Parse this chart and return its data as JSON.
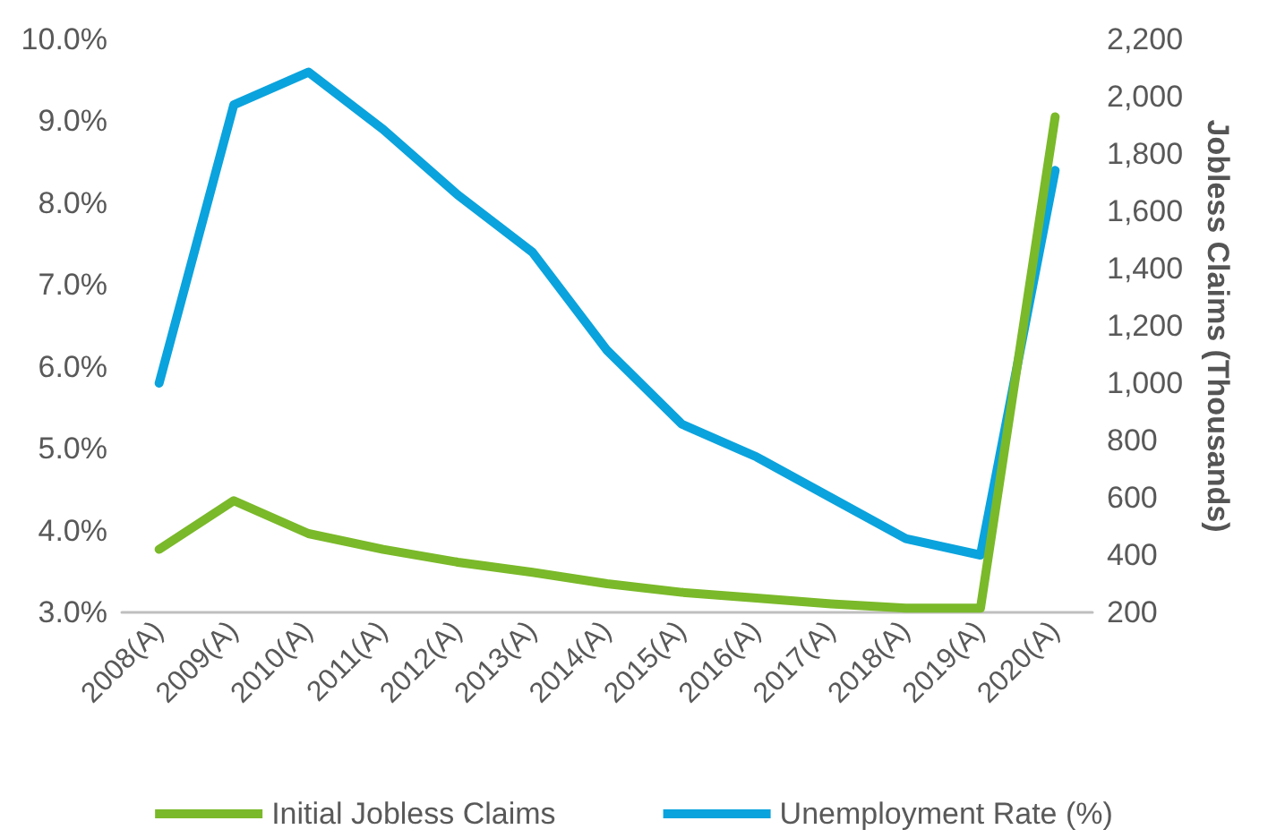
{
  "chart_data": {
    "type": "line",
    "categories": [
      "2008(A)",
      "2009(A)",
      "2010(A)",
      "2011(A)",
      "2012(A)",
      "2013(A)",
      "2014(A)",
      "2015(A)",
      "2016(A)",
      "2017(A)",
      "2018(A)",
      "2019(A)",
      "2020(A)"
    ],
    "y2label": "Jobless Claims (Thousands)",
    "series": [
      {
        "name": "Initial Jobless Claims",
        "color": "#7ab929",
        "axis": "y2",
        "values": [
          420,
          590,
          475,
          420,
          375,
          340,
          300,
          270,
          250,
          230,
          215,
          215,
          1930
        ]
      },
      {
        "name": "Unemployment Rate (%)",
        "color": "#0aa3dd",
        "values": [
          5.8,
          9.2,
          9.6,
          8.9,
          8.1,
          7.4,
          6.2,
          5.3,
          4.9,
          4.4,
          3.9,
          3.7,
          8.4
        ]
      }
    ],
    "ylim": [
      3,
      10
    ],
    "yticks": [
      {
        "value": 3,
        "label": "3.0%"
      },
      {
        "value": 4,
        "label": "4.0%"
      },
      {
        "value": 5,
        "label": "5.0%"
      },
      {
        "value": 6,
        "label": "6.0%"
      },
      {
        "value": 7,
        "label": "7.0%"
      },
      {
        "value": 8,
        "label": "8.0%"
      },
      {
        "value": 9,
        "label": "9.0%"
      },
      {
        "value": 10,
        "label": "10.0%"
      }
    ],
    "y2lim": [
      200,
      2200
    ],
    "y2ticks": [
      {
        "value": 200,
        "label": "200"
      },
      {
        "value": 400,
        "label": "400"
      },
      {
        "value": 600,
        "label": "600"
      },
      {
        "value": 800,
        "label": "800"
      },
      {
        "value": 1000,
        "label": "1,000"
      },
      {
        "value": 1200,
        "label": "1,200"
      },
      {
        "value": 1400,
        "label": "1,400"
      },
      {
        "value": 1600,
        "label": "1,600"
      },
      {
        "value": 1800,
        "label": "1,800"
      },
      {
        "value": 2000,
        "label": "2,000"
      },
      {
        "value": 2200,
        "label": "2,200"
      }
    ],
    "legend": "bottom",
    "marker": "none",
    "line_style": "solid",
    "grid": false
  }
}
